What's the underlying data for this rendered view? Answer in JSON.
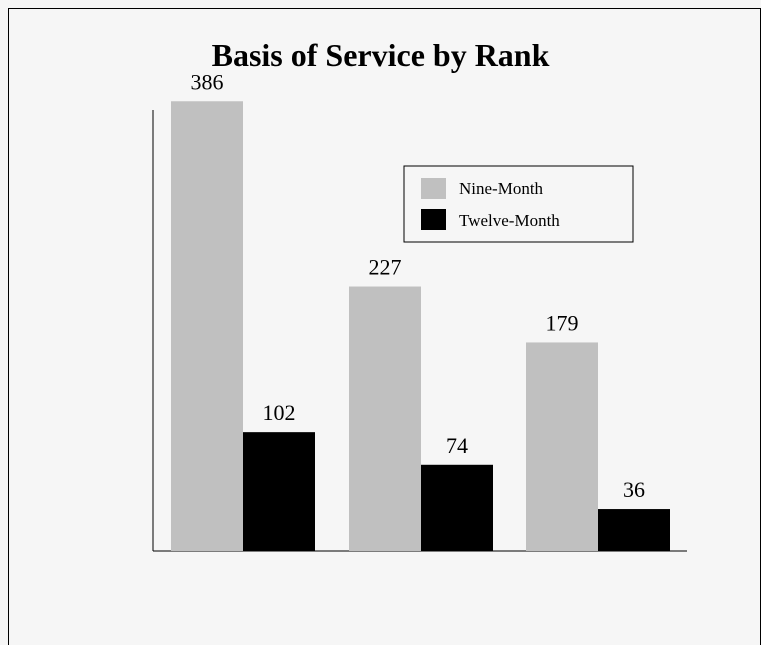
{
  "chart_data": {
    "type": "bar",
    "title": "Basis of Service by Rank",
    "xlabel": "",
    "ylabel": "",
    "categories": [
      "",
      "",
      ""
    ],
    "series": [
      {
        "name": "Nine-Month",
        "values": [
          386,
          227,
          179
        ],
        "color": "#c0c0c0"
      },
      {
        "name": "Twelve-Month",
        "values": [
          102,
          74,
          36
        ],
        "color": "#000000"
      }
    ],
    "ylim": [
      0,
      430
    ],
    "grid": false,
    "legend_position": "top-right",
    "data_labels": true
  }
}
